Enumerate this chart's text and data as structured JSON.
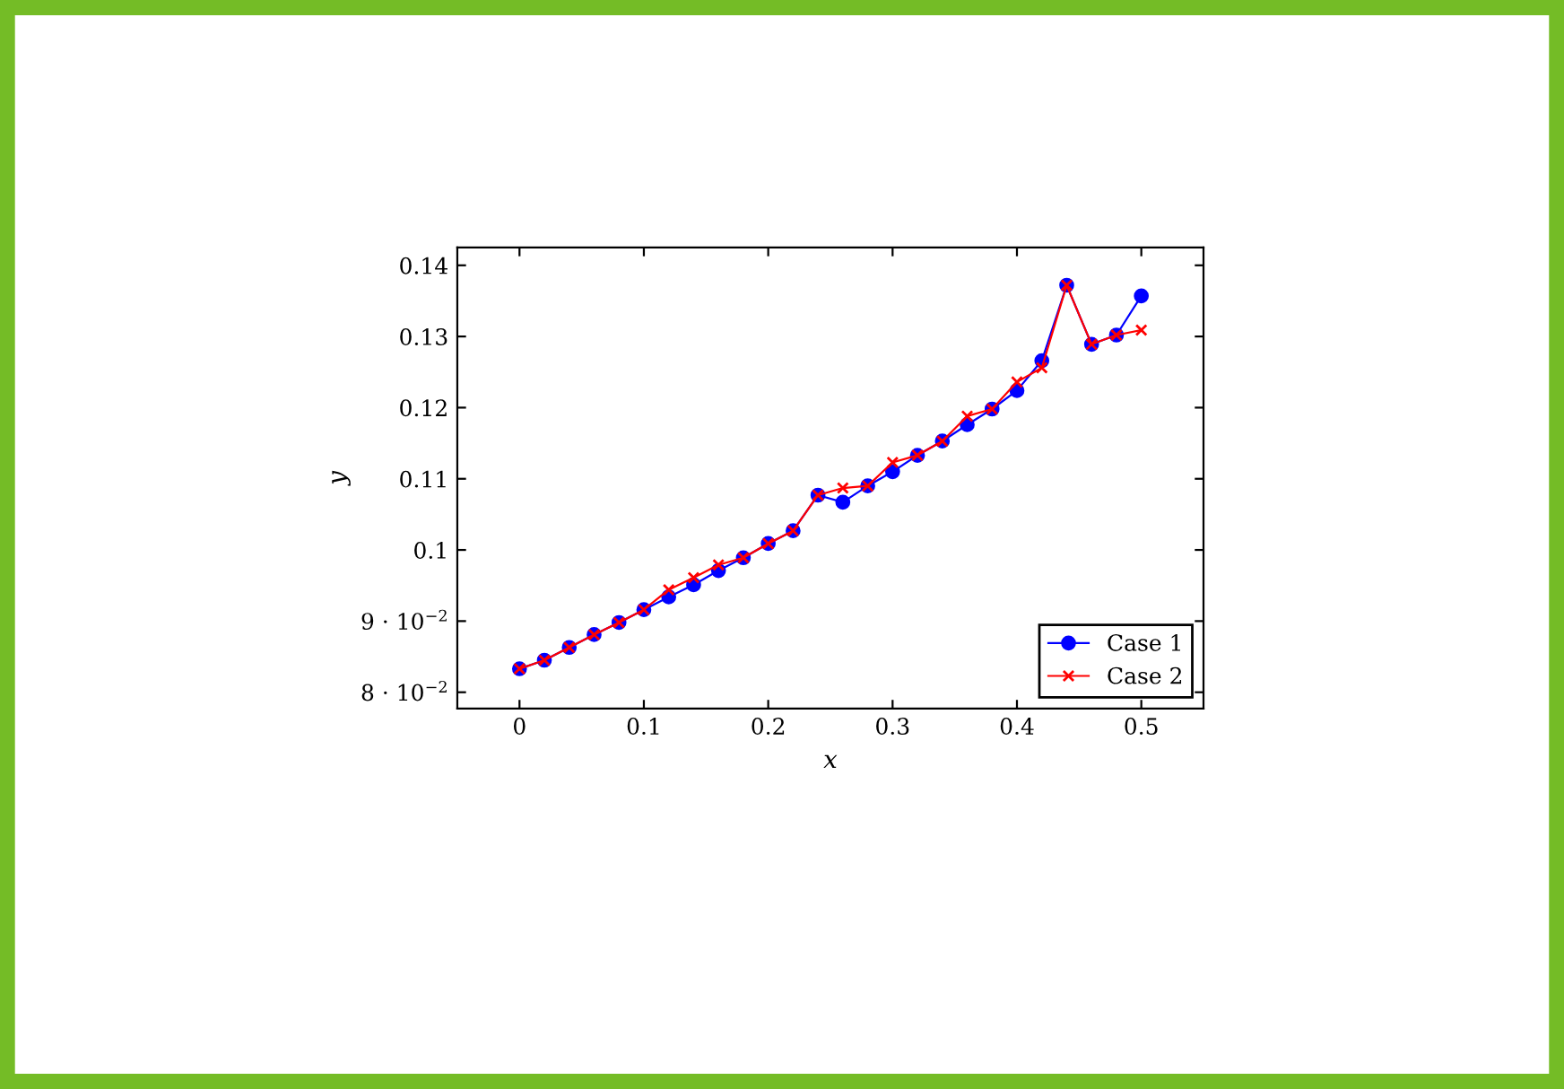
{
  "chart_data": {
    "type": "line",
    "xlabel": "x",
    "ylabel": "y",
    "x": [
      0,
      0.02,
      0.04,
      0.06,
      0.08,
      0.1,
      0.12,
      0.14,
      0.16,
      0.18,
      0.2,
      0.22,
      0.24,
      0.26,
      0.28,
      0.3,
      0.32,
      0.34,
      0.36,
      0.38,
      0.4,
      0.42,
      0.44,
      0.46,
      0.48,
      0.5
    ],
    "series": [
      {
        "name": "Case 1",
        "color": "#0000ff",
        "marker": "circle",
        "values": [
          0.0833,
          0.0845,
          0.0863,
          0.0881,
          0.0898,
          0.0916,
          0.0934,
          0.0951,
          0.0971,
          0.0989,
          0.1009,
          0.1027,
          0.1077,
          0.1067,
          0.109,
          0.111,
          0.1133,
          0.1153,
          0.1176,
          0.1198,
          0.1224,
          0.1266,
          0.1372,
          0.1289,
          0.1302,
          0.1357
        ]
      },
      {
        "name": "Case 2",
        "color": "#ff0000",
        "marker": "cross",
        "values": [
          0.0833,
          0.0845,
          0.0863,
          0.0881,
          0.0898,
          0.0916,
          0.0944,
          0.0961,
          0.0979,
          0.0989,
          0.1009,
          0.1027,
          0.1077,
          0.1087,
          0.109,
          0.1123,
          0.1133,
          0.1153,
          0.1188,
          0.1198,
          0.1236,
          0.1256,
          0.1372,
          0.1289,
          0.1302,
          0.1309
        ]
      }
    ],
    "xlim": [
      -0.05,
      0.55
    ],
    "xticks": [
      0,
      0.1,
      0.2,
      0.3,
      0.4,
      0.5
    ],
    "ylim": [
      0.0777,
      0.1425
    ],
    "yticks": [
      {
        "value": 0.08,
        "label": "8 · 10$^{−2}$"
      },
      {
        "value": 0.09,
        "label": "9 · 10$^{−2}$"
      },
      0.1,
      0.11,
      0.12,
      0.13,
      0.14
    ],
    "legend": "bottom right",
    "grid": false,
    "line_style": "solid"
  }
}
